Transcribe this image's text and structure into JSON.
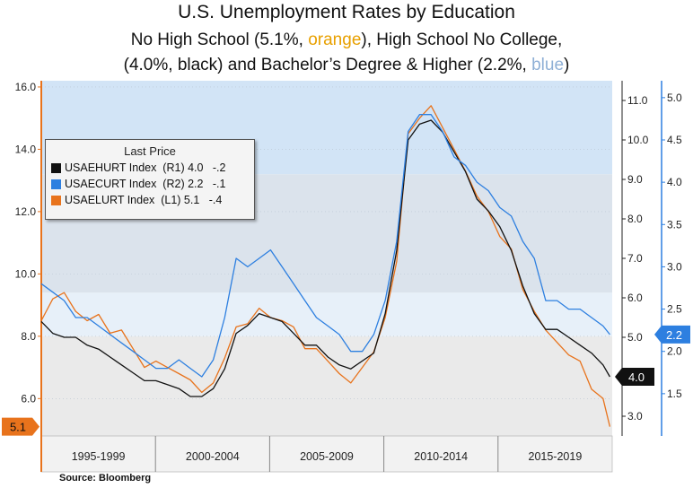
{
  "title": "U.S. Unemployment Rates by Education",
  "subtitle": {
    "line1_a": "No High School  (5.1%, ",
    "line1_b": "orange",
    "line1_c": "), High School No College,",
    "line2_a": "(4.0%, black) and Bachelor’s Degree & Higher  (2.2%, ",
    "line2_b": "blue",
    "line2_c": ")"
  },
  "source": "Source: Bloomberg",
  "colors": {
    "orange": "#e8731c",
    "black": "#111111",
    "blue": "#2d7fe0",
    "title_orange": "#e8a000",
    "title_blue": "#8fb0d6"
  },
  "legend": {
    "title": "Last Price",
    "items": [
      {
        "text": "USAEHURT Index  (R1) 4.0   -.2",
        "color": "#111111"
      },
      {
        "text": "USAECURT Index  (R2) 2.2   -.1",
        "color": "#2d7fe0"
      },
      {
        "text": "USAELURT Index  (L1) 5.1   -.4",
        "color": "#e8731c"
      }
    ]
  },
  "chart_data": {
    "type": "line",
    "x_categories": [
      "1995-1999",
      "2000-2004",
      "2005-2009",
      "2010-2014",
      "2015-2019"
    ],
    "x_range": [
      1993.0,
      2017.9
    ],
    "axes": {
      "left": {
        "min": 4.8,
        "max": 16.2,
        "ticks": [
          6.0,
          8.0,
          10.0,
          12.0,
          14.0,
          16.0
        ],
        "labels": [
          "6.0",
          "8.0",
          "10.0",
          "12.0",
          "14.0",
          "16.0"
        ]
      },
      "right1": {
        "min": 2.5,
        "max": 11.5,
        "ticks": [
          3.0,
          4.0,
          5.0,
          6.0,
          7.0,
          8.0,
          9.0,
          10.0,
          11.0
        ],
        "labels": [
          "3.0",
          "4.0",
          "5.0",
          "6.0",
          "7.0",
          "8.0",
          "9.0",
          "10.0",
          "11.0"
        ]
      },
      "right2": {
        "min": 1.0,
        "max": 5.2,
        "ticks": [
          1.5,
          2.0,
          2.5,
          3.0,
          3.5,
          4.0,
          4.5,
          5.0
        ],
        "labels": [
          "1.5",
          "2.0",
          "2.5",
          "3.0",
          "3.5",
          "4.0",
          "4.5",
          "5.0"
        ]
      }
    },
    "last_value_labels": {
      "left": "5.1",
      "right1": "4.0",
      "right2": "2.2"
    },
    "series": [
      {
        "name": "USAELURT Index",
        "axis": "left",
        "x": [
          1993.0,
          1993.5,
          1994.0,
          1994.5,
          1995.0,
          1995.5,
          1996.0,
          1996.5,
          1997.0,
          1997.5,
          1998.0,
          1998.5,
          1999.0,
          1999.5,
          2000.0,
          2000.5,
          2001.0,
          2001.5,
          2002.0,
          2002.5,
          2003.0,
          2003.5,
          2004.0,
          2004.5,
          2005.0,
          2005.5,
          2006.0,
          2006.5,
          2007.0,
          2007.5,
          2008.0,
          2008.5,
          2009.0,
          2009.5,
          2010.0,
          2010.5,
          2011.0,
          2011.5,
          2012.0,
          2012.5,
          2013.0,
          2013.5,
          2014.0,
          2014.5,
          2015.0,
          2015.5,
          2016.0,
          2016.5,
          2017.0,
          2017.5,
          2017.8
        ],
        "y": [
          8.5,
          9.2,
          9.4,
          8.8,
          8.5,
          8.7,
          8.1,
          8.2,
          7.6,
          7.0,
          7.2,
          7.0,
          6.8,
          6.6,
          6.2,
          6.5,
          7.3,
          8.3,
          8.4,
          8.9,
          8.6,
          8.5,
          8.3,
          7.6,
          7.6,
          7.2,
          6.8,
          6.5,
          7.0,
          7.5,
          8.6,
          10.4,
          14.5,
          15.0,
          15.4,
          14.7,
          14.0,
          13.3,
          12.5,
          12.0,
          11.2,
          10.8,
          9.5,
          8.8,
          8.2,
          7.8,
          7.4,
          7.2,
          6.3,
          6.0,
          5.1
        ]
      },
      {
        "name": "USAEHURT Index",
        "axis": "right1",
        "x": [
          1993.0,
          1993.5,
          1994.0,
          1994.5,
          1995.0,
          1995.5,
          1996.0,
          1996.5,
          1997.0,
          1997.5,
          1998.0,
          1998.5,
          1999.0,
          1999.5,
          2000.0,
          2000.5,
          2001.0,
          2001.5,
          2002.0,
          2002.5,
          2003.0,
          2003.5,
          2004.0,
          2004.5,
          2005.0,
          2005.5,
          2006.0,
          2006.5,
          2007.0,
          2007.5,
          2008.0,
          2008.5,
          2009.0,
          2009.5,
          2010.0,
          2010.5,
          2011.0,
          2011.5,
          2012.0,
          2012.5,
          2013.0,
          2013.5,
          2014.0,
          2014.5,
          2015.0,
          2015.5,
          2016.0,
          2016.5,
          2017.0,
          2017.5,
          2017.8
        ],
        "y": [
          5.4,
          5.1,
          5.0,
          5.0,
          4.8,
          4.7,
          4.5,
          4.3,
          4.1,
          3.9,
          3.9,
          3.8,
          3.7,
          3.5,
          3.5,
          3.7,
          4.2,
          5.1,
          5.3,
          5.6,
          5.5,
          5.4,
          5.1,
          4.8,
          4.8,
          4.5,
          4.3,
          4.2,
          4.4,
          4.6,
          5.6,
          7.2,
          10.0,
          10.4,
          10.5,
          10.2,
          9.7,
          9.2,
          8.5,
          8.2,
          7.8,
          7.2,
          6.3,
          5.6,
          5.2,
          5.2,
          5.0,
          4.8,
          4.6,
          4.3,
          4.0
        ]
      },
      {
        "name": "USAECURT Index",
        "axis": "right2",
        "x": [
          1993.0,
          1993.5,
          1994.0,
          1994.5,
          1995.0,
          1995.5,
          1996.0,
          1996.5,
          1997.0,
          1997.5,
          1998.0,
          1998.5,
          1999.0,
          1999.5,
          2000.0,
          2000.5,
          2001.0,
          2001.5,
          2002.0,
          2002.5,
          2003.0,
          2003.5,
          2004.0,
          2004.5,
          2005.0,
          2005.5,
          2006.0,
          2006.5,
          2007.0,
          2007.5,
          2008.0,
          2008.5,
          2009.0,
          2009.5,
          2010.0,
          2010.5,
          2011.0,
          2011.5,
          2012.0,
          2012.5,
          2013.0,
          2013.5,
          2014.0,
          2014.5,
          2015.0,
          2015.5,
          2016.0,
          2016.5,
          2017.0,
          2017.5,
          2017.8
        ],
        "y": [
          2.8,
          2.7,
          2.6,
          2.4,
          2.4,
          2.3,
          2.2,
          2.1,
          2.0,
          1.9,
          1.8,
          1.8,
          1.9,
          1.8,
          1.7,
          1.9,
          2.4,
          3.1,
          3.0,
          3.1,
          3.2,
          3.0,
          2.8,
          2.6,
          2.4,
          2.3,
          2.2,
          2.0,
          2.0,
          2.2,
          2.6,
          3.3,
          4.6,
          4.8,
          4.8,
          4.6,
          4.3,
          4.2,
          4.0,
          3.9,
          3.7,
          3.6,
          3.3,
          3.1,
          2.6,
          2.6,
          2.5,
          2.5,
          2.4,
          2.3,
          2.2
        ]
      }
    ]
  }
}
